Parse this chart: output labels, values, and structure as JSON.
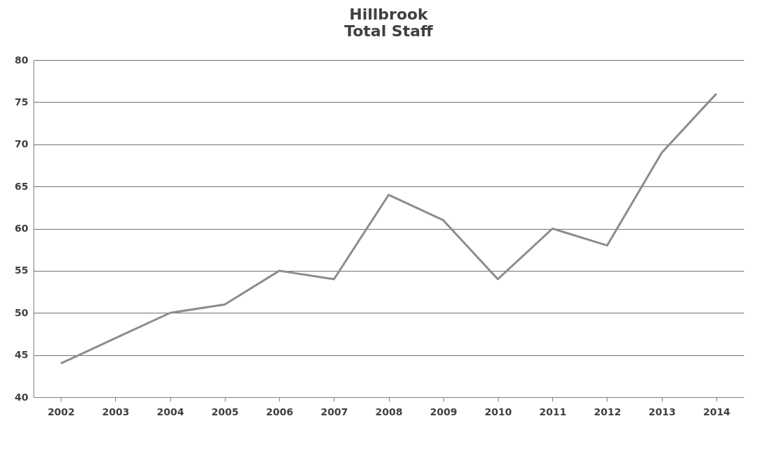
{
  "chart_data": {
    "type": "line",
    "title": "Hillbrook\nTotal Staff",
    "categories": [
      "2002",
      "2003",
      "2004",
      "2005",
      "2006",
      "2007",
      "2008",
      "2009",
      "2010",
      "2011",
      "2012",
      "2013",
      "2014"
    ],
    "series": [
      {
        "color": "#8c8c8c",
        "values": [
          44,
          47,
          50,
          51,
          55,
          54,
          64,
          61,
          54,
          60,
          58,
          69,
          76
        ]
      }
    ],
    "ylim": [
      40,
      80
    ],
    "yticks": [
      40,
      45,
      50,
      55,
      60,
      65,
      70,
      75,
      80
    ],
    "grid": "y",
    "legend": false,
    "marker": "none",
    "line_style": "solid"
  }
}
